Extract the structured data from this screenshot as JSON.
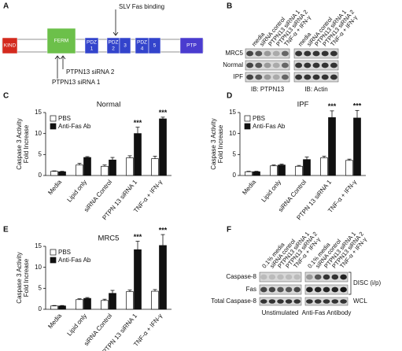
{
  "figure": {
    "panel_labels": [
      "A",
      "B",
      "C",
      "D",
      "E",
      "F"
    ],
    "a": {
      "domains": [
        [
          "KIND"
        ],
        [
          "FERM"
        ],
        [
          "PDZ",
          "1"
        ],
        [
          "PDZ",
          "2"
        ],
        [
          "3"
        ],
        [
          "PDZ",
          "4"
        ],
        [
          "5"
        ],
        [
          "PTP"
        ]
      ],
      "arrows": [
        "SLV Fas binding",
        "PTPN13 siRNA 2",
        "PTPN13 siRNA 1"
      ]
    },
    "b": {
      "lanes": [
        "media",
        "siRNA control",
        "PTPN13 siRNA 1",
        "PTPN13 siRNA 2",
        "TNF-α + IFN-γ"
      ],
      "rows": [
        "MRC5",
        "Normal",
        "IPF"
      ],
      "blots": [
        "IB: PTPN13",
        "IB: Actin"
      ]
    },
    "f": {
      "lanes": [
        "0.1% media",
        "siRNA control",
        "PTPN13 siRNA 1",
        "PTPN13 siRNA 2",
        "TNF-α + IFN-γ"
      ],
      "rows": [
        "Caspase-8",
        "Fas",
        "Total Caspase-8"
      ],
      "groups": [
        "DISC (i/p)",
        "WCL"
      ],
      "conditions": [
        "Unstimulated",
        "Anti-Fas Antibody"
      ]
    }
  },
  "chart_data": [
    {
      "type": "bar",
      "title": "Normal",
      "y_label": [
        "Caspase 3 Activity",
        "Fold Increase"
      ],
      "categories": [
        "Media",
        "Lipid only",
        "siRNA Control",
        "PTPN 13 siRNA 1",
        "TNF-α + IFN-γ"
      ],
      "series": [
        {
          "name": "PBS",
          "color": "#ffffff",
          "values": [
            1,
            2.5,
            2.2,
            4.2,
            4
          ],
          "errors": [
            0.1,
            0.4,
            0.3,
            0.5,
            0.6
          ]
        },
        {
          "name": "Anti-Fas Ab",
          "color": "#111111",
          "values": [
            0.9,
            4.3,
            3.7,
            10,
            13.5
          ],
          "errors": [
            0.1,
            0.2,
            0.6,
            1.5,
            0.4
          ],
          "annotations": [
            null,
            null,
            null,
            "***",
            "***"
          ]
        }
      ],
      "ylim": [
        0,
        15
      ],
      "yticks": [
        0,
        5,
        10,
        15
      ],
      "legend": "upper left"
    },
    {
      "type": "bar",
      "title": "IPF",
      "y_label": [
        "Caspase 3 Activity",
        "Fold Increase"
      ],
      "categories": [
        "Media",
        "Lipid only",
        "siRNA Control",
        "PTPN 13 siRNA 1",
        "TNF-α + IFN-γ"
      ],
      "series": [
        {
          "name": "PBS",
          "color": "#ffffff",
          "values": [
            0.9,
            2.3,
            2.2,
            4.2,
            3.6
          ],
          "errors": [
            0.1,
            0.2,
            0.2,
            0.4,
            0.3
          ]
        },
        {
          "name": "Anti-Fas Ab",
          "color": "#111111",
          "values": [
            0.9,
            2.5,
            3.8,
            13.8,
            13.7
          ],
          "errors": [
            0.1,
            0.2,
            0.6,
            1.6,
            1.8
          ],
          "annotations": [
            null,
            null,
            null,
            "***",
            "***"
          ]
        }
      ],
      "ylim": [
        0,
        15
      ],
      "yticks": [
        0,
        5,
        10,
        15
      ],
      "legend": "upper left"
    },
    {
      "type": "bar",
      "title": "MRC5",
      "y_label": [
        "Caspase 3 Activity",
        "Fold Increase"
      ],
      "categories": [
        "Media",
        "Lipid only",
        "siRNA Control",
        "PTPN 13 siRNA 1",
        "TNF-α + IFN-γ"
      ],
      "series": [
        {
          "name": "PBS",
          "color": "#ffffff",
          "values": [
            0.8,
            2.3,
            2.1,
            4.2,
            4.3
          ],
          "errors": [
            0.1,
            0.2,
            0.3,
            0.4,
            0.4
          ]
        },
        {
          "name": "Anti-Fas Ab",
          "color": "#111111",
          "values": [
            0.8,
            2.6,
            3.8,
            14.2,
            15.2
          ],
          "errors": [
            0.1,
            0.2,
            0.7,
            2,
            2.6
          ],
          "annotations": [
            null,
            null,
            null,
            "***",
            "***"
          ]
        }
      ],
      "ylim": [
        0,
        15
      ],
      "yticks": [
        0,
        5,
        10,
        15
      ],
      "legend": "upper left"
    }
  ]
}
